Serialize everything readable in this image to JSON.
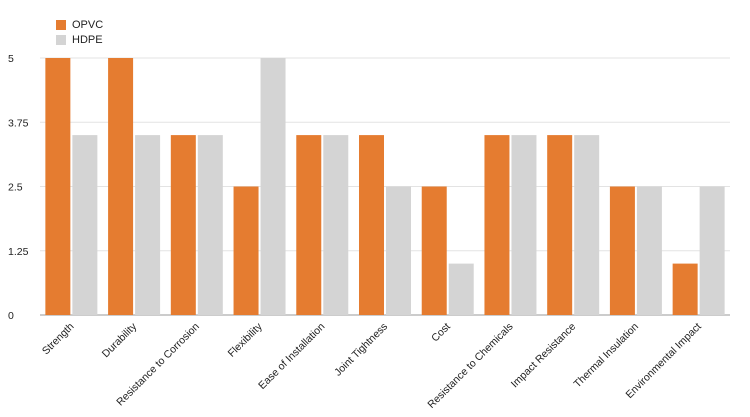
{
  "chart_data": {
    "type": "bar",
    "title": "",
    "xlabel": "",
    "ylabel": "",
    "categories": [
      "Strength",
      "Durability",
      "Resistance to Corrosion",
      "Flexibility",
      "Ease of Installation",
      "Joint Tightness",
      "Cost",
      "Resistance to Chemicals",
      "Impact Resistance",
      "Thermal Insulation",
      "Environmental Impact"
    ],
    "series": [
      {
        "name": "OPVC",
        "color": "#E57C30",
        "values": [
          5,
          5,
          3.5,
          2.5,
          3.5,
          3.5,
          2.5,
          3.5,
          3.5,
          2.5,
          1
        ]
      },
      {
        "name": "HDPE",
        "color": "#D4D4D4",
        "values": [
          3.5,
          3.5,
          3.5,
          5,
          3.5,
          2.5,
          1,
          3.5,
          3.5,
          2.5,
          2.5
        ]
      }
    ],
    "ylim": [
      0,
      5
    ],
    "yticks": [
      "0",
      "1.25",
      "2.5",
      "3.75",
      "5"
    ],
    "grid": true,
    "legend": "top-left"
  }
}
